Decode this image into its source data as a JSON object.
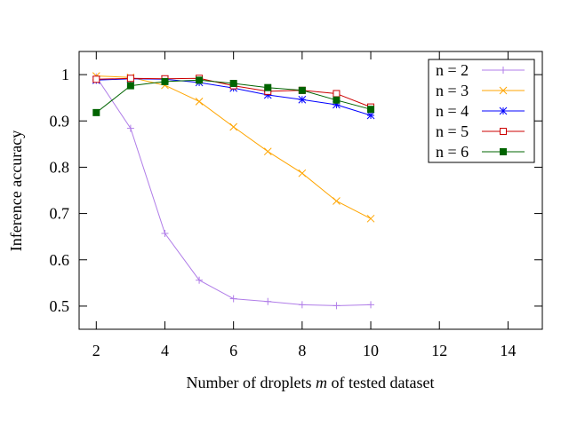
{
  "chart_data": {
    "type": "line",
    "xlabel_parts": [
      "Number of droplets ",
      "m",
      " of tested dataset"
    ],
    "ylabel": "Inference accuracy",
    "xlim": [
      1.5,
      15
    ],
    "ylim": [
      0.45,
      1.05
    ],
    "xticks": [
      2,
      4,
      6,
      8,
      10,
      12,
      14
    ],
    "yticks": [
      0.5,
      0.6,
      0.7,
      0.8,
      0.9,
      1
    ],
    "ytick_labels": [
      "0.5",
      "0.6",
      "0.7",
      "0.8",
      "0.9",
      "1"
    ],
    "legend_position": "top-right",
    "grid": false,
    "x": [
      2,
      3,
      4,
      5,
      6,
      7,
      8,
      9,
      10
    ],
    "series": [
      {
        "name": "n = 2",
        "color": "#b07de8",
        "marker": "plus",
        "values": [
          0.995,
          0.884,
          0.657,
          0.556,
          0.516,
          0.51,
          0.503,
          0.501,
          0.503
        ]
      },
      {
        "name": "n = 3",
        "color": "#ffa500",
        "marker": "x",
        "values": [
          0.997,
          0.994,
          0.977,
          0.942,
          0.887,
          0.834,
          0.787,
          0.727,
          0.689
        ]
      },
      {
        "name": "n = 4",
        "color": "#0000ff",
        "marker": "star",
        "values": [
          0.988,
          0.991,
          0.99,
          0.983,
          0.971,
          0.956,
          0.946,
          0.935,
          0.912
        ]
      },
      {
        "name": "n = 5",
        "color": "#cc0000",
        "marker": "open-square",
        "values": [
          0.99,
          0.992,
          0.991,
          0.992,
          0.976,
          0.964,
          0.966,
          0.959,
          0.93
        ]
      },
      {
        "name": "n = 6",
        "color": "#006400",
        "marker": "filled-square",
        "values": [
          0.918,
          0.976,
          0.985,
          0.988,
          0.981,
          0.972,
          0.966,
          0.945,
          0.925
        ]
      }
    ]
  }
}
